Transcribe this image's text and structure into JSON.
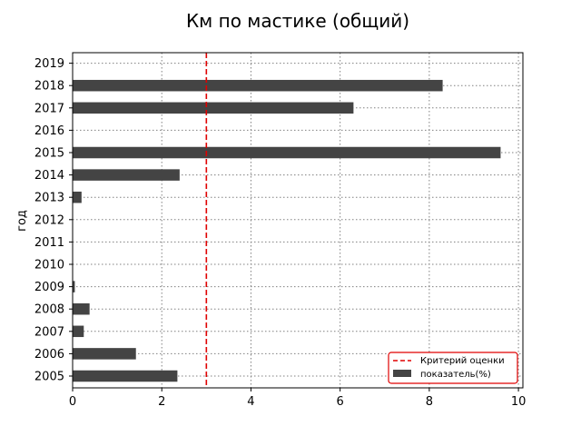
{
  "chart_data": {
    "type": "bar",
    "orientation": "horizontal",
    "title": "Км по мастике (общий)",
    "xlabel": "",
    "ylabel": "год",
    "categories": [
      "2005",
      "2006",
      "2007",
      "2008",
      "2009",
      "2010",
      "2011",
      "2012",
      "2013",
      "2014",
      "2015",
      "2016",
      "2017",
      "2018",
      "2019"
    ],
    "series": [
      {
        "name": "показатель(%)",
        "color": "#444444",
        "values": [
          2.35,
          1.42,
          0.25,
          0.38,
          0.05,
          0,
          0,
          0,
          0.2,
          2.4,
          9.6,
          0,
          6.3,
          8.3,
          0
        ]
      }
    ],
    "reference_line": {
      "name": "Критерий оценки",
      "value": 3,
      "color": "#e00000",
      "style": "dashed"
    },
    "xlim": [
      0,
      10.1
    ],
    "xticks": [
      0,
      2,
      4,
      6,
      8,
      10
    ],
    "grid": true,
    "legend_position": "bottom-right"
  }
}
